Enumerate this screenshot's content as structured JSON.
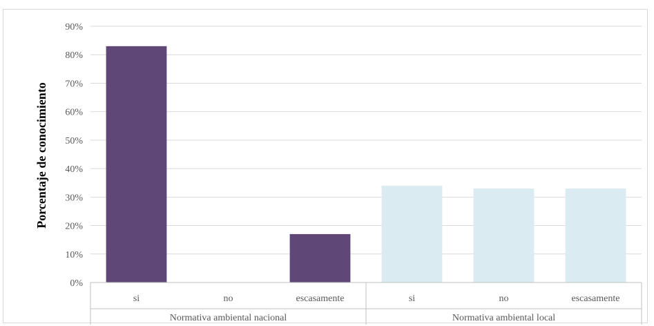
{
  "chart_data": {
    "type": "bar",
    "ylabel": "Porcentaje de conocimiento",
    "ylim": [
      0,
      90
    ],
    "y_ticks": [
      "0%",
      "10%",
      "20%",
      "30%",
      "40%",
      "50%",
      "60%",
      "70%",
      "80%",
      "90%"
    ],
    "groups": [
      {
        "label": "Normativa ambiental nacional",
        "color": "#5f4878",
        "categories": [
          "si",
          "no",
          "escasamente"
        ],
        "values": [
          83,
          0,
          17
        ]
      },
      {
        "label": "Normativa ambiental local",
        "color": "#daebf2",
        "categories": [
          "si",
          "no",
          "escasamente"
        ],
        "values": [
          34,
          33,
          33
        ]
      }
    ],
    "grid": true,
    "legend": "none"
  }
}
